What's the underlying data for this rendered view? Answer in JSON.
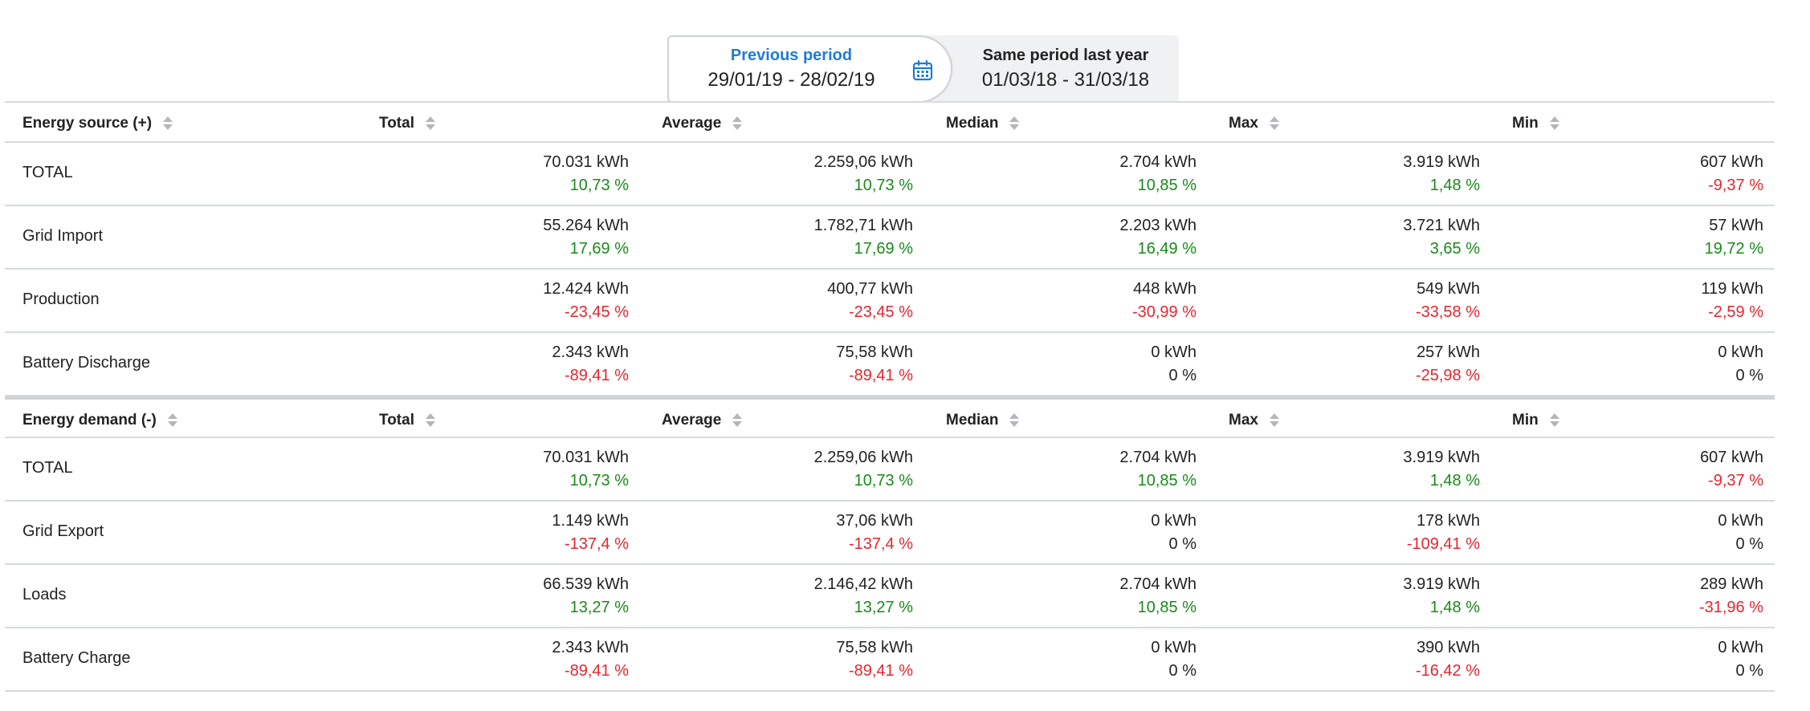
{
  "period_selector": {
    "active": {
      "label": "Previous period",
      "range": "29/01/19 - 28/02/19"
    },
    "other": {
      "label": "Same period last year",
      "range": "01/03/18 - 31/03/18"
    },
    "icon": "calendar-icon"
  },
  "colors": {
    "accent": "#1f7bd6",
    "positive": "#1a8a1a",
    "negative": "#e8242e"
  },
  "source_table": {
    "headers": [
      "Energy source (+)",
      "Total",
      "Average",
      "Median",
      "Max",
      "Min"
    ],
    "rows": [
      {
        "name": "TOTAL",
        "cells": [
          {
            "v": "70.031 kWh",
            "p": "10,73 %",
            "s": "pos"
          },
          {
            "v": "2.259,06 kWh",
            "p": "10,73 %",
            "s": "pos"
          },
          {
            "v": "2.704 kWh",
            "p": "10,85 %",
            "s": "pos"
          },
          {
            "v": "3.919 kWh",
            "p": "1,48 %",
            "s": "pos"
          },
          {
            "v": "607 kWh",
            "p": "-9,37 %",
            "s": "neg"
          }
        ]
      },
      {
        "name": "Grid Import",
        "cells": [
          {
            "v": "55.264 kWh",
            "p": "17,69 %",
            "s": "pos"
          },
          {
            "v": "1.782,71 kWh",
            "p": "17,69 %",
            "s": "pos"
          },
          {
            "v": "2.203 kWh",
            "p": "16,49 %",
            "s": "pos"
          },
          {
            "v": "3.721 kWh",
            "p": "3,65 %",
            "s": "pos"
          },
          {
            "v": "57 kWh",
            "p": "19,72 %",
            "s": "pos"
          }
        ]
      },
      {
        "name": "Production",
        "cells": [
          {
            "v": "12.424 kWh",
            "p": "-23,45 %",
            "s": "neg"
          },
          {
            "v": "400,77 kWh",
            "p": "-23,45 %",
            "s": "neg"
          },
          {
            "v": "448 kWh",
            "p": "-30,99 %",
            "s": "neg"
          },
          {
            "v": "549 kWh",
            "p": "-33,58 %",
            "s": "neg"
          },
          {
            "v": "119 kWh",
            "p": "-2,59 %",
            "s": "neg"
          }
        ]
      },
      {
        "name": "Battery Discharge",
        "cells": [
          {
            "v": "2.343 kWh",
            "p": "-89,41 %",
            "s": "neg"
          },
          {
            "v": "75,58 kWh",
            "p": "-89,41 %",
            "s": "neg"
          },
          {
            "v": "0 kWh",
            "p": "0 %",
            "s": "neu"
          },
          {
            "v": "257 kWh",
            "p": "-25,98 %",
            "s": "neg"
          },
          {
            "v": "0 kWh",
            "p": "0 %",
            "s": "neu"
          }
        ]
      }
    ]
  },
  "demand_table": {
    "headers": [
      "Energy demand (-)",
      "Total",
      "Average",
      "Median",
      "Max",
      "Min"
    ],
    "rows": [
      {
        "name": "TOTAL",
        "cells": [
          {
            "v": "70.031 kWh",
            "p": "10,73 %",
            "s": "pos"
          },
          {
            "v": "2.259,06 kWh",
            "p": "10,73 %",
            "s": "pos"
          },
          {
            "v": "2.704 kWh",
            "p": "10,85 %",
            "s": "pos"
          },
          {
            "v": "3.919 kWh",
            "p": "1,48 %",
            "s": "pos"
          },
          {
            "v": "607 kWh",
            "p": "-9,37 %",
            "s": "neg"
          }
        ]
      },
      {
        "name": "Grid Export",
        "cells": [
          {
            "v": "1.149 kWh",
            "p": "-137,4 %",
            "s": "neg"
          },
          {
            "v": "37,06 kWh",
            "p": "-137,4 %",
            "s": "neg"
          },
          {
            "v": "0 kWh",
            "p": "0 %",
            "s": "neu"
          },
          {
            "v": "178 kWh",
            "p": "-109,41 %",
            "s": "neg"
          },
          {
            "v": "0 kWh",
            "p": "0 %",
            "s": "neu"
          }
        ]
      },
      {
        "name": "Loads",
        "cells": [
          {
            "v": "66.539 kWh",
            "p": "13,27 %",
            "s": "pos"
          },
          {
            "v": "2.146,42 kWh",
            "p": "13,27 %",
            "s": "pos"
          },
          {
            "v": "2.704 kWh",
            "p": "10,85 %",
            "s": "pos"
          },
          {
            "v": "3.919 kWh",
            "p": "1,48 %",
            "s": "pos"
          },
          {
            "v": "289 kWh",
            "p": "-31,96 %",
            "s": "neg"
          }
        ]
      },
      {
        "name": "Battery Charge",
        "cells": [
          {
            "v": "2.343 kWh",
            "p": "-89,41 %",
            "s": "neg"
          },
          {
            "v": "75,58 kWh",
            "p": "-89,41 %",
            "s": "neg"
          },
          {
            "v": "0 kWh",
            "p": "0 %",
            "s": "neu"
          },
          {
            "v": "390 kWh",
            "p": "-16,42 %",
            "s": "neg"
          },
          {
            "v": "0 kWh",
            "p": "0 %",
            "s": "neu"
          }
        ]
      }
    ]
  }
}
